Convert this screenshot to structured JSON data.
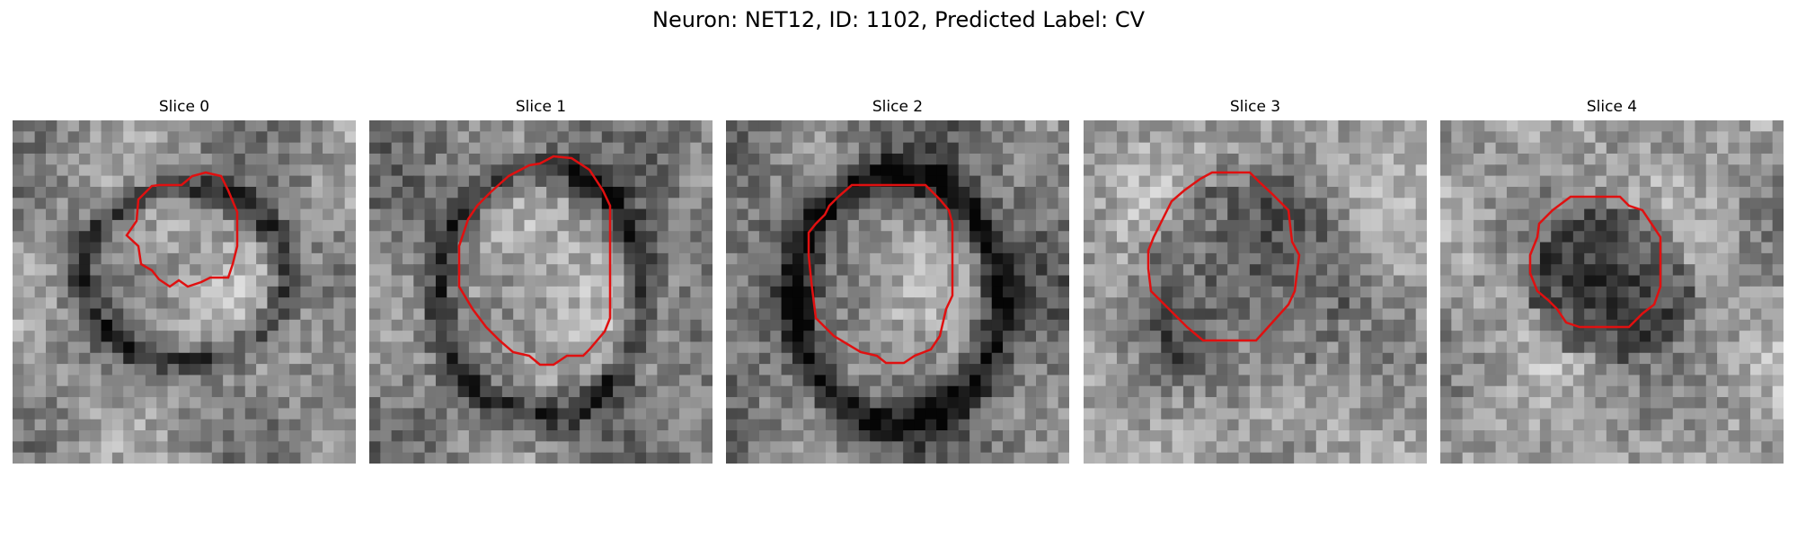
{
  "figure": {
    "title": "Neuron: NET12, ID: 1102, Predicted Label: CV"
  },
  "slices": [
    {
      "title": "Slice 0"
    },
    {
      "title": "Slice 1"
    },
    {
      "title": "Slice 2"
    },
    {
      "title": "Slice 3"
    },
    {
      "title": "Slice 4"
    }
  ],
  "colors": {
    "contour": "#e01010",
    "colormap": "gray"
  }
}
